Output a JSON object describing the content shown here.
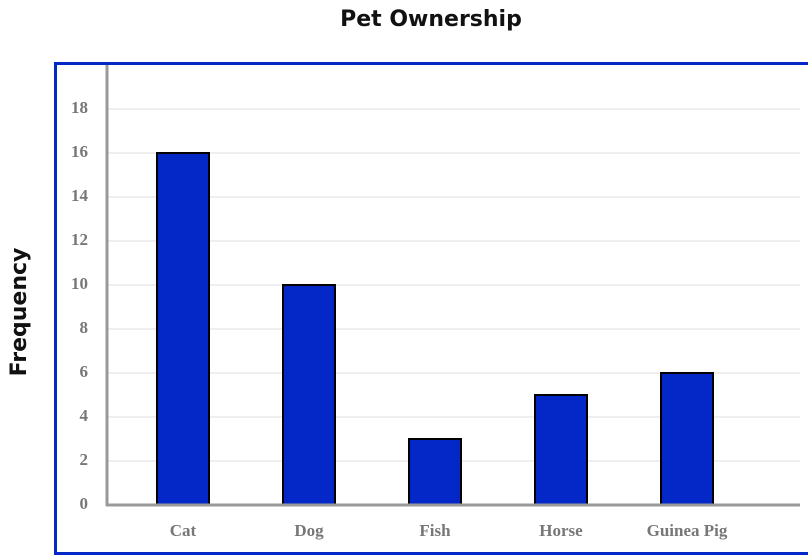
{
  "chart_data": {
    "type": "bar",
    "title": "Pet Ownership",
    "y_label": "Frequency",
    "categories": [
      "Cat",
      "Dog",
      "Fish",
      "Horse",
      "Guinea Pig"
    ],
    "values": [
      16,
      10,
      3,
      5,
      6
    ],
    "color": "#0428c8",
    "ylim": [
      0,
      20
    ],
    "yticks": [
      0,
      2,
      4,
      6,
      8,
      10,
      12,
      14,
      16,
      18
    ],
    "grid": true
  }
}
